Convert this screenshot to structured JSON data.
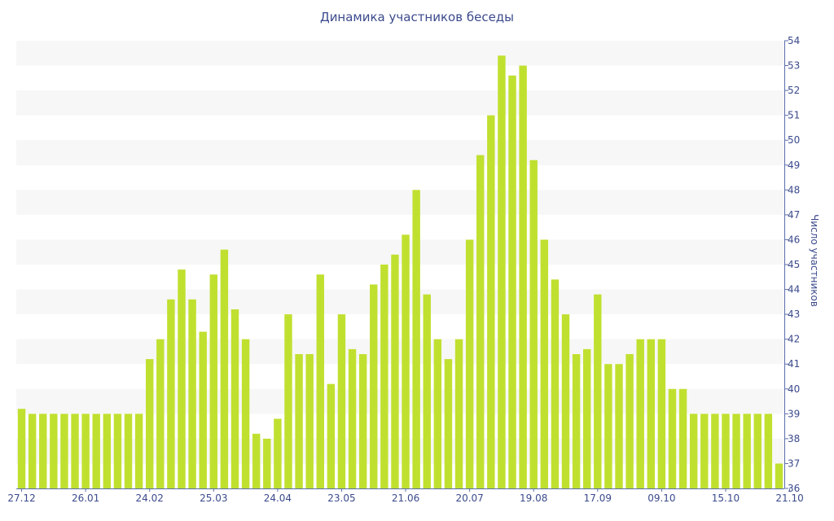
{
  "chart_data": {
    "type": "bar",
    "title": "Динамика участников беседы",
    "xlabel": "",
    "ylabel": "Число участников",
    "ylim": [
      36,
      54
    ],
    "y_ticks": [
      36,
      37,
      38,
      39,
      40,
      41,
      42,
      43,
      44,
      45,
      46,
      47,
      48,
      49,
      50,
      51,
      52,
      53,
      54
    ],
    "y_axis_side": "right",
    "grid": "alternating horizontal bands",
    "bar_color": "#c0e030",
    "band_color": "#f7f7f7",
    "axis_color": "#5b6eaa",
    "text_color": "#3b4a8c",
    "x_tick_labels": [
      {
        "label": "27.12",
        "index": 0
      },
      {
        "label": "26.01",
        "index": 6
      },
      {
        "label": "24.02",
        "index": 12
      },
      {
        "label": "25.03",
        "index": 18
      },
      {
        "label": "24.04",
        "index": 24
      },
      {
        "label": "23.05",
        "index": 30
      },
      {
        "label": "21.06",
        "index": 36
      },
      {
        "label": "20.07",
        "index": 42
      },
      {
        "label": "19.08",
        "index": 48
      },
      {
        "label": "17.09",
        "index": 54
      },
      {
        "label": "09.10",
        "index": 60
      },
      {
        "label": "15.10",
        "index": 66
      },
      {
        "label": "21.10",
        "index": 72
      }
    ],
    "values": [
      39.2,
      39,
      39,
      39,
      39,
      39,
      39,
      39,
      39,
      39,
      39,
      39,
      41.2,
      42,
      43.6,
      44.8,
      43.6,
      42.3,
      44.6,
      45.6,
      43.2,
      42,
      38.2,
      38,
      38.8,
      43,
      41.4,
      41.4,
      44.6,
      40.2,
      43,
      41.6,
      41.4,
      44.2,
      45,
      45.4,
      46.2,
      48,
      43.8,
      42,
      41.2,
      42,
      46,
      49.4,
      51,
      53.4,
      52.6,
      53,
      49.2,
      46,
      44.4,
      43,
      41.4,
      41.6,
      43.8,
      41,
      41,
      41.4,
      42,
      42,
      42,
      40,
      40,
      39,
      39,
      39,
      39,
      39,
      39,
      39,
      39,
      37
    ]
  }
}
